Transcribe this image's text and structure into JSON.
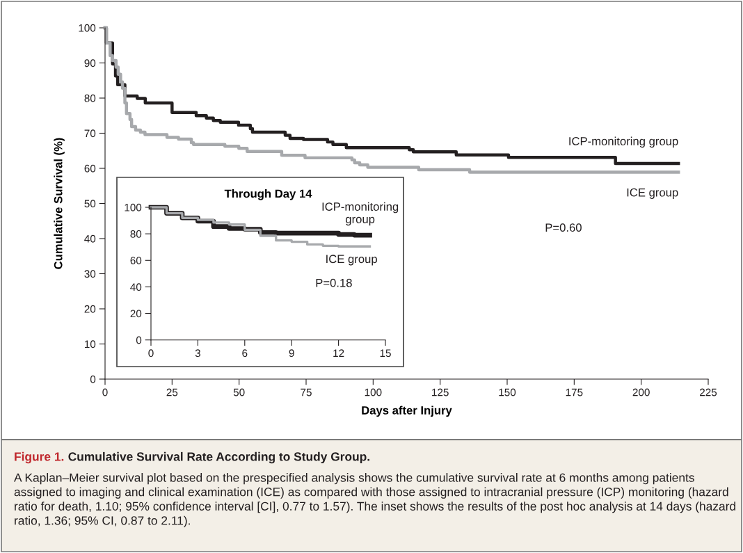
{
  "chart_data": [
    {
      "type": "step",
      "title": "Figure 1. Cumulative Survival Rate According to Study Group.",
      "xlabel": "Days after Injury",
      "ylabel": "Cumulative Survival (%)",
      "xlim": [
        0,
        225
      ],
      "ylim": [
        0,
        100
      ],
      "xticks": [
        0,
        25,
        50,
        75,
        100,
        125,
        150,
        175,
        200,
        225
      ],
      "yticks": [
        0,
        10,
        20,
        30,
        40,
        50,
        60,
        70,
        80,
        90,
        100
      ],
      "grid": false,
      "legend": false,
      "annotations": [
        "P=0.60",
        "A Kaplan–Meier survival plot based on the prespecified analysis shows the cumulative survival rate at 6 months among patients assigned to imaging and clinical examination (ICE) as compared with those assigned to intracranial pressure (ICP) monitoring (hazard ratio for death, 1.10; 95% confidence interval [CI], 0.77 to 1.57). The inset shows the results of the post hoc analysis at 14 days (hazard ratio, 1.36; 95% CI, 0.87 to 2.11)."
      ],
      "series": [
        {
          "name": "ICP-monitoring group",
          "color": "#231f20",
          "x": [
            0,
            0.5,
            2.8,
            3.9,
            4.7,
            7.4,
            12,
            15,
            25,
            34,
            37.8,
            40.4,
            43,
            49.8,
            54.2,
            55,
            67.2,
            69,
            74,
            83,
            85,
            90,
            113.5,
            115,
            131,
            150.5,
            190.4,
            213.9
          ],
          "values": [
            100,
            95.7,
            89.7,
            86.3,
            83.8,
            80.6,
            79.9,
            78.6,
            75.9,
            75.0,
            74.3,
            73.6,
            73.1,
            72.3,
            71.3,
            70.3,
            69.4,
            68.5,
            68.2,
            67.5,
            66.8,
            65.9,
            65.3,
            64.7,
            63.8,
            63.1,
            61.4,
            61.4
          ]
        },
        {
          "name": "ICE group",
          "color": "#a7a9ac",
          "x": [
            0,
            0.5,
            1.9,
            2.8,
            4.1,
            4.9,
            5.8,
            6.5,
            7.4,
            8.0,
            9.3,
            9.9,
            11.4,
            13.2,
            14.9,
            23.1,
            27.4,
            32.2,
            33,
            44.7,
            49.9,
            53,
            65.9,
            74.6,
            92.1,
            93.1,
            95,
            98,
            117,
            136,
            213.9
          ],
          "values": [
            100,
            95.7,
            92.1,
            90.7,
            88.8,
            86.8,
            84.6,
            82.8,
            78.6,
            75.6,
            73.9,
            71.9,
            70.9,
            70.3,
            69.6,
            68.8,
            68.3,
            67.3,
            66.8,
            66.3,
            65.7,
            64.8,
            63.7,
            63.0,
            62.4,
            61.6,
            61.0,
            60.3,
            59.6,
            58.9,
            58.9
          ]
        }
      ]
    },
    {
      "type": "step",
      "title": "Through Day 14",
      "xlim": [
        0,
        15
      ],
      "ylim": [
        0,
        100
      ],
      "xticks": [
        0,
        3,
        6,
        9,
        12,
        15
      ],
      "yticks": [
        0,
        20,
        40,
        60,
        80,
        100
      ],
      "grid": false,
      "legend": false,
      "annotations": [
        "P=0.18"
      ],
      "series": [
        {
          "name": "ICP-monitoring\ngroup",
          "color": "#231f20",
          "x": [
            0,
            1,
            2,
            3,
            4,
            5,
            6,
            7,
            8,
            12,
            13,
            14
          ],
          "values": [
            100,
            95.5,
            92,
            89.5,
            85.5,
            84,
            83.5,
            81,
            80.5,
            79.5,
            79,
            79
          ]
        },
        {
          "name": "ICE group",
          "color": "#a7a9ac",
          "x": [
            0,
            1,
            2,
            3,
            4,
            5,
            6,
            7,
            8,
            9,
            10,
            11,
            12,
            14
          ],
          "values": [
            100,
            95.5,
            92,
            90.5,
            88.5,
            87,
            83,
            78.5,
            75,
            74,
            72,
            71,
            70.5,
            70.5
          ]
        }
      ]
    }
  ]
}
